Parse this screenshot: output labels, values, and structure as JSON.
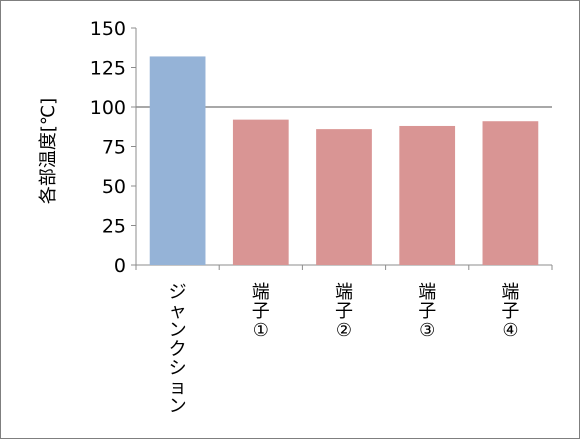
{
  "chart_data": {
    "type": "bar",
    "title": "",
    "xlabel": "",
    "ylabel": "各部温度[℃]",
    "ylim": [
      0,
      150
    ],
    "yticks": [
      0,
      25,
      50,
      75,
      100,
      125,
      150
    ],
    "categories": [
      "ジャンクション",
      "端子①",
      "端子②",
      "端子③",
      "端子④"
    ],
    "category_lines": [
      [
        "ジ",
        "ャ",
        "ン",
        "ク",
        "シ",
        "ョ",
        "ン"
      ],
      [
        "端",
        "子",
        "①"
      ],
      [
        "端",
        "子",
        "②"
      ],
      [
        "端",
        "子",
        "③"
      ],
      [
        "端",
        "子",
        "④"
      ]
    ],
    "values": [
      132,
      92,
      86,
      88,
      91
    ],
    "bar_colors": [
      "#95b3d7",
      "#d99594",
      "#d99594",
      "#d99594",
      "#d99594"
    ],
    "reference_line": 100,
    "reference_line_color": "#8c8c8c",
    "grid": false,
    "legend": "none"
  }
}
